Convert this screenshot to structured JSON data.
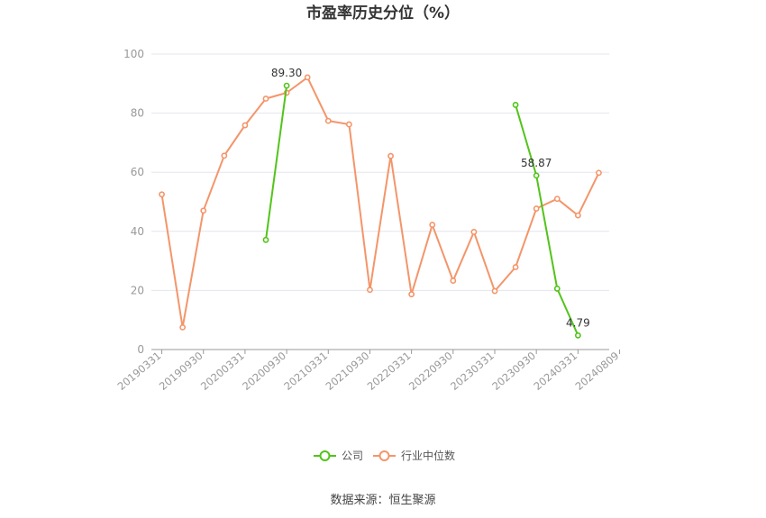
{
  "chart_data": {
    "type": "line",
    "title": "市盈率历史分位（%）",
    "xlabel": "",
    "ylabel": "",
    "ylim": [
      0,
      100
    ],
    "yticks": [
      0,
      20,
      40,
      60,
      80,
      100
    ],
    "grid": true,
    "legend_position": "bottom",
    "x": [
      "20190331",
      "20190630",
      "20190930",
      "20191231",
      "20200331",
      "20200630",
      "20200930",
      "20201231",
      "20210331",
      "20210630",
      "20210930",
      "20211231",
      "20220331",
      "20220630",
      "20220930",
      "20221231",
      "20230331",
      "20230630",
      "20230930",
      "20231231",
      "20240331",
      "20240630"
    ],
    "x_tick_labels": [
      "20190331",
      "20190930",
      "20200331",
      "20200930",
      "20210331",
      "20210930",
      "20220331",
      "20220930",
      "20230331",
      "20230930",
      "20240331",
      "20240809"
    ],
    "series": [
      {
        "name": "公司",
        "color": "#52c41a",
        "values": [
          null,
          null,
          null,
          null,
          null,
          37.1,
          89.3,
          null,
          null,
          null,
          null,
          null,
          null,
          null,
          null,
          null,
          null,
          82.8,
          58.87,
          20.6,
          4.79,
          null
        ],
        "labels": [
          {
            "index": 6,
            "text": "89.30"
          },
          {
            "index": 18,
            "text": "58.87"
          },
          {
            "index": 20,
            "text": "4.79"
          }
        ]
      },
      {
        "name": "行业中位数",
        "color": "#f4956a",
        "values": [
          52.5,
          7.5,
          47.0,
          65.6,
          75.9,
          84.9,
          86.9,
          92.1,
          77.4,
          76.2,
          20.2,
          65.5,
          18.7,
          42.2,
          23.3,
          39.8,
          19.8,
          27.9,
          47.7,
          51.0,
          45.4,
          59.8
        ],
        "labels": []
      }
    ]
  },
  "footer": {
    "source": "数据来源：恒生聚源"
  }
}
